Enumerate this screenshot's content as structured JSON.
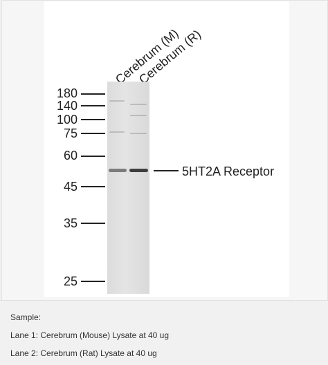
{
  "blot": {
    "lanes": [
      "Cerebrum (M)",
      "Cerebrum (R)"
    ],
    "markers": [
      "180",
      "140",
      "100",
      "75",
      "60",
      "45",
      "35",
      "25"
    ],
    "target": "5HT2A Receptor"
  },
  "sample": {
    "heading": "Sample:",
    "lane1": "Lane 1: Cerebrum (Mouse) Lysate at 40 ug",
    "lane2": "Lane 2: Cerebrum (Rat) Lysate at 40 ug"
  }
}
